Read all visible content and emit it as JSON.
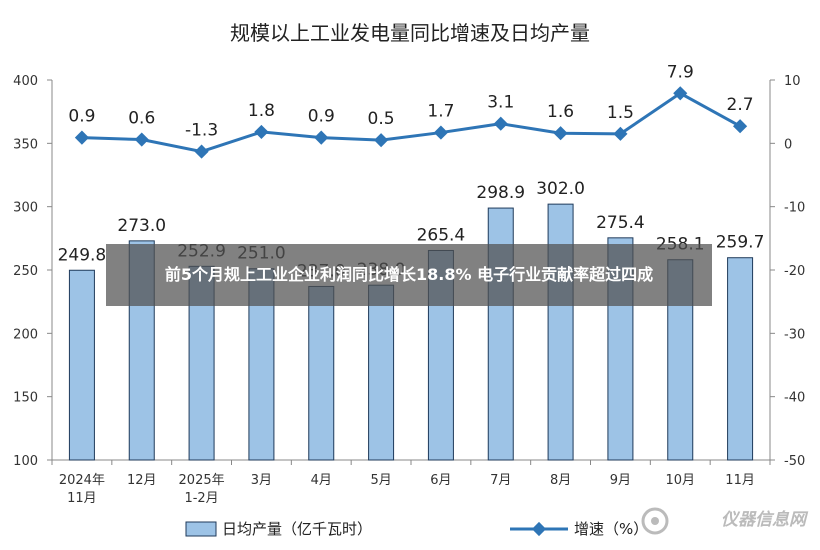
{
  "chart_data": {
    "type": "bar",
    "title": "规模以上工业发电量同比增速及日均产量",
    "categories": [
      "2024年\n11月",
      "12月",
      "2025年\n1-2月",
      "3月",
      "4月",
      "5月",
      "6月",
      "7月",
      "8月",
      "9月",
      "10月",
      "11月"
    ],
    "series": [
      {
        "name": "日均产量（亿千瓦时）",
        "type": "bar",
        "axis": "left",
        "values": [
          249.8,
          273.0,
          252.9,
          251.0,
          237.0,
          238.0,
          265.4,
          298.9,
          302.0,
          275.4,
          258.1,
          259.7
        ]
      },
      {
        "name": "增速（%）",
        "type": "line",
        "axis": "right",
        "values": [
          0.9,
          0.6,
          -1.3,
          1.8,
          0.9,
          0.5,
          1.7,
          3.1,
          1.6,
          1.5,
          7.9,
          2.7
        ]
      }
    ],
    "bar_labels": [
      "249.8",
      "273.0",
      "252.9",
      "251.0",
      "237.0",
      "238.0",
      "265.4",
      "298.9",
      "302.0",
      "275.4",
      "258.1",
      "259.7"
    ],
    "line_labels": [
      "0.9",
      "0.6",
      "-1.3",
      "1.8",
      "0.9",
      "0.5",
      "1.7",
      "3.1",
      "1.6",
      "1.5",
      "7.9",
      "2.7"
    ],
    "ylim_left": [
      100,
      400
    ],
    "yticks_left": [
      100,
      150,
      200,
      250,
      300,
      350,
      400
    ],
    "ylim_right": [
      -50,
      10
    ],
    "yticks_right": [
      -50,
      -40,
      -30,
      -20,
      -10,
      0,
      10
    ],
    "legend_position": "bottom",
    "grid": false,
    "colors": {
      "bar_fill": "#9DC3E6",
      "bar_stroke": "#1F3A5A",
      "line": "#2E75B6"
    }
  },
  "overlay": {
    "headline": "前5个月规上工业企业利润同比增长18.8% 电子行业贡献率超过四成"
  },
  "watermark": {
    "text": "仪器信息网"
  }
}
